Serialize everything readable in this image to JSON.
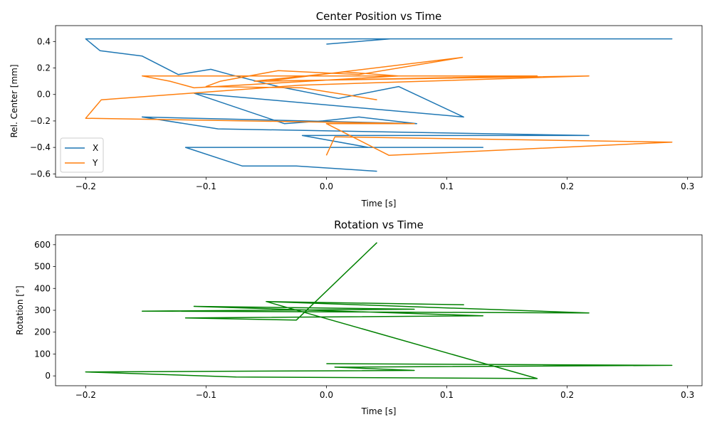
{
  "chart_data": [
    {
      "type": "line",
      "title": "Center Position vs Time",
      "xlabel": "Time [s]",
      "ylabel": "Rel. Center [mm]",
      "xlim": [
        -0.225,
        0.312
      ],
      "ylim": [
        -0.625,
        0.52
      ],
      "xticks": [
        -0.2,
        -0.1,
        0.0,
        0.1,
        0.2,
        0.3
      ],
      "xtick_labels": [
        "−0.2",
        "−0.1",
        "0.0",
        "0.1",
        "0.2",
        "0.3"
      ],
      "yticks": [
        -0.6,
        -0.4,
        -0.2,
        0.0,
        0.2,
        0.4
      ],
      "ytick_labels": [
        "−0.6",
        "−0.4",
        "−0.2",
        "0.0",
        "0.2",
        "0.4"
      ],
      "grid": false,
      "legend_position": "lower-left",
      "series": [
        {
          "name": "X",
          "color": "#1f77b4",
          "x": [
            0.0,
            0.053,
            0.287,
            -0.2,
            -0.188,
            -0.153,
            -0.123,
            -0.096,
            -0.08,
            -0.04,
            0.01,
            0.06,
            0.114,
            -0.11,
            -0.035,
            -0.003,
            0.027,
            0.075,
            -0.153,
            -0.09,
            0.218,
            -0.02,
            0.035,
            0.13,
            -0.117,
            -0.07,
            -0.025,
            0.042
          ],
          "y": [
            0.38,
            0.42,
            0.42,
            0.42,
            0.33,
            0.29,
            0.15,
            0.19,
            0.15,
            0.06,
            -0.03,
            0.06,
            -0.17,
            0.01,
            -0.22,
            -0.2,
            -0.17,
            -0.22,
            -0.17,
            -0.26,
            -0.31,
            -0.31,
            -0.4,
            -0.4,
            -0.4,
            -0.54,
            -0.54,
            -0.58
          ]
        },
        {
          "name": "Y",
          "color": "#ff7f0e",
          "x": [
            0.042,
            -0.02,
            -0.1,
            -0.088,
            -0.04,
            0.027,
            0.113,
            -0.05,
            0.175,
            -0.153,
            -0.13,
            -0.11,
            0.06,
            0.015,
            -0.06,
            0.218,
            -0.022,
            -0.187,
            -0.2,
            0.073,
            0.0,
            0.052,
            0.287,
            0.007,
            0.0
          ],
          "y": [
            -0.04,
            0.05,
            0.06,
            0.1,
            0.18,
            0.15,
            0.28,
            0.1,
            0.14,
            0.14,
            0.1,
            0.05,
            0.14,
            0.17,
            0.1,
            0.14,
            0.07,
            -0.04,
            -0.18,
            -0.22,
            -0.22,
            -0.46,
            -0.36,
            -0.32,
            -0.46
          ]
        }
      ]
    },
    {
      "type": "line",
      "title": "Rotation vs Time",
      "xlabel": "Time [s]",
      "ylabel": "Rotation [°]",
      "xlim": [
        -0.225,
        0.312
      ],
      "ylim": [
        -45,
        645
      ],
      "xticks": [
        -0.2,
        -0.1,
        0.0,
        0.1,
        0.2,
        0.3
      ],
      "xtick_labels": [
        "−0.2",
        "−0.1",
        "0.0",
        "0.1",
        "0.2",
        "0.3"
      ],
      "yticks": [
        0,
        100,
        200,
        300,
        400,
        500,
        600
      ],
      "ytick_labels": [
        "0",
        "100",
        "200",
        "300",
        "400",
        "500",
        "600"
      ],
      "grid": false,
      "series": [
        {
          "color": "#008000",
          "x": [
            0.042,
            -0.025,
            -0.117,
            0.13,
            -0.11,
            0.073,
            -0.153,
            0.218,
            -0.05,
            0.114,
            -0.05,
            0.175,
            -0.075,
            -0.2,
            0.073,
            0.007,
            0.287,
            0.0
          ],
          "y": [
            610,
            255,
            265,
            275,
            318,
            305,
            296,
            288,
            340,
            325,
            340,
            -12,
            -5,
            18,
            25,
            40,
            48,
            56
          ]
        }
      ]
    }
  ]
}
